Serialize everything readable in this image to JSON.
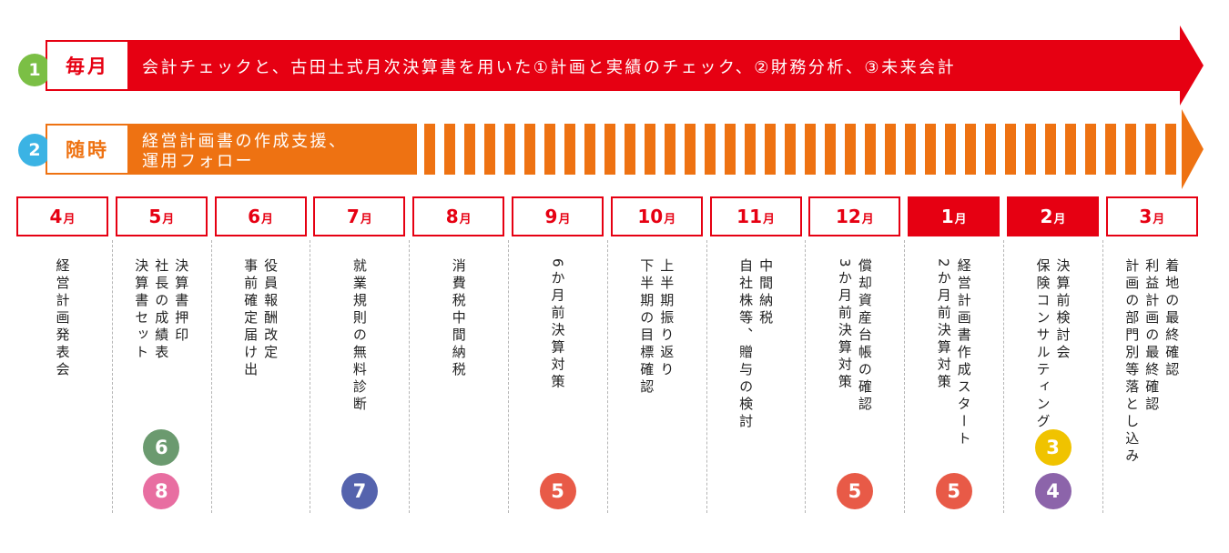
{
  "lanes": [
    {
      "num": "1",
      "tag": "毎月",
      "text": "会計チェックと、古田土式月次決算書を用いた①計画と実績のチェック、②財務分析、③未来会計"
    },
    {
      "num": "2",
      "tag": "随時",
      "text_lines": [
        "経営計画書の作成支援、",
        "運用フォロー"
      ]
    }
  ],
  "months": [
    {
      "num": "4",
      "unit": "月",
      "lines": [
        "経営計画発表会"
      ],
      "badges": []
    },
    {
      "num": "5",
      "unit": "月",
      "lines": [
        "決算書押印",
        "社長の成績表",
        "決算書セット"
      ],
      "badges": [
        {
          "n": "6",
          "color": "#6b9a6f"
        },
        {
          "n": "8",
          "color": "#e86ea1"
        }
      ]
    },
    {
      "num": "6",
      "unit": "月",
      "lines": [
        "役員報酬改定",
        "事前確定届け出"
      ],
      "badges": []
    },
    {
      "num": "7",
      "unit": "月",
      "lines": [
        "就業規則の無料診断"
      ],
      "badges": [
        {
          "n": "7",
          "color": "#5563ad"
        }
      ]
    },
    {
      "num": "8",
      "unit": "月",
      "lines": [
        "消費税中間納税"
      ],
      "badges": []
    },
    {
      "num": "9",
      "unit": "月",
      "lines": [
        "6か月前決算対策"
      ],
      "badges": [
        {
          "n": "5",
          "color": "#e85a47"
        }
      ]
    },
    {
      "num": "10",
      "unit": "月",
      "lines": [
        "上半期振り返り",
        "下半期の目標確認"
      ],
      "badges": []
    },
    {
      "num": "11",
      "unit": "月",
      "lines": [
        "中間納税",
        "自社株等、贈与の検討"
      ],
      "badges": []
    },
    {
      "num": "12",
      "unit": "月",
      "lines": [
        "償却資産台帳の確認",
        "3か月前決算対策"
      ],
      "badges": [
        {
          "n": "5",
          "color": "#e85a47"
        }
      ]
    },
    {
      "num": "1",
      "unit": "月",
      "highlight": true,
      "lines": [
        "経営計画書作成スタート",
        "2か月前決算対策"
      ],
      "badges": [
        {
          "n": "5",
          "color": "#e85a47"
        }
      ]
    },
    {
      "num": "2",
      "unit": "月",
      "highlight": true,
      "lines": [
        "決算前検討会",
        "保険コンサルティング"
      ],
      "badges": [
        {
          "n": "3",
          "color": "#f0c300"
        },
        {
          "n": "4",
          "color": "#8c64aa"
        }
      ]
    },
    {
      "num": "3",
      "unit": "月",
      "lines": [
        "着地の最終確認",
        "利益計画の最終確認",
        "計画の部門別等落とし込み"
      ],
      "badges": []
    }
  ],
  "colors": {
    "red": "#e60012",
    "orange": "#ee7212",
    "lane1_num": "#7bbf45",
    "lane2_num": "#3bb3e4"
  }
}
